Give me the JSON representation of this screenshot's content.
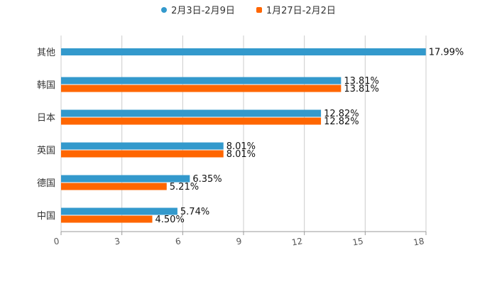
{
  "chart_data": {
    "type": "bar",
    "orientation": "horizontal",
    "categories": [
      "其他",
      "韩国",
      "日本",
      "英国",
      "德国",
      "中国"
    ],
    "series": [
      {
        "name": "2月3日-2月9日",
        "color": "#3399cc",
        "marker": "circle",
        "values": [
          17.99,
          13.81,
          12.82,
          8.01,
          6.35,
          5.74
        ],
        "labels": [
          "17.99%",
          "13.81%",
          "12.82%",
          "8.01%",
          "6.35%",
          "5.74%"
        ]
      },
      {
        "name": "1月27日-2月2日",
        "color": "#ff6600",
        "marker": "square",
        "values": [
          null,
          13.81,
          12.82,
          8.01,
          5.21,
          4.5
        ],
        "labels": [
          "",
          "13.81%",
          "12.82%",
          "8.01%",
          "5.21%",
          "4.50%"
        ]
      }
    ],
    "xlim": [
      0,
      18
    ],
    "xticks": [
      0,
      3,
      6,
      9,
      12,
      15,
      18
    ],
    "xtick_labels": [
      "0",
      "3",
      "6",
      "9",
      "12",
      "15",
      "18"
    ],
    "grid": true,
    "legend": "top-center",
    "title": "",
    "xlabel": "",
    "ylabel": ""
  }
}
